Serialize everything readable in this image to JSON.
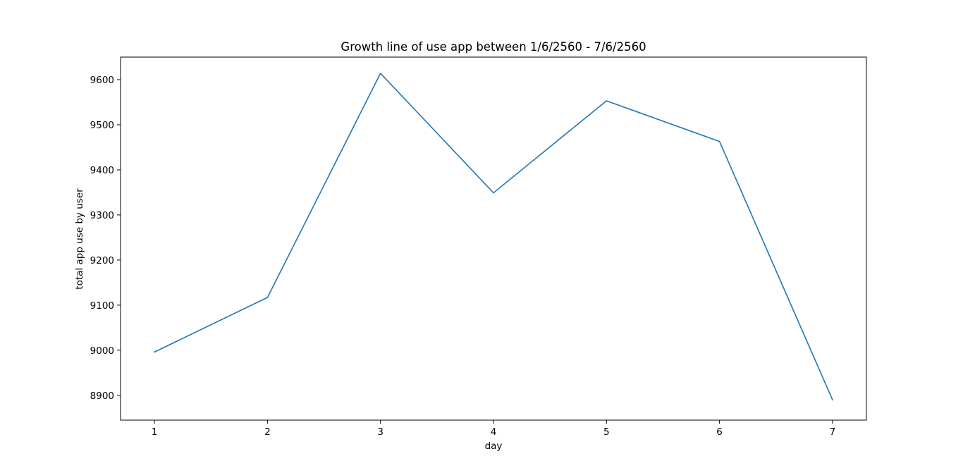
{
  "chart_data": {
    "type": "line",
    "title": "Growth line of use app between 1/6/2560 - 7/6/2560",
    "xlabel": "day",
    "ylabel": "total app use by user",
    "x": [
      1,
      2,
      3,
      4,
      5,
      6,
      7
    ],
    "series": [
      {
        "values": [
          8996,
          9117,
          9614,
          9349,
          9553,
          9463,
          8890
        ],
        "color": "#1f77b4"
      }
    ],
    "xlim": [
      0.7,
      7.3
    ],
    "ylim": [
      8845,
      9650
    ],
    "xticks": [
      1,
      2,
      3,
      4,
      5,
      6,
      7
    ],
    "xtick_labels": [
      "1",
      "2",
      "3",
      "4",
      "5",
      "6",
      "7"
    ],
    "yticks": [
      8900,
      9000,
      9100,
      9200,
      9300,
      9400,
      9500,
      9600
    ],
    "ytick_labels": [
      "8900",
      "9000",
      "9100",
      "9200",
      "9300",
      "9400",
      "9500",
      "9600"
    ],
    "grid": false,
    "legend": false
  }
}
